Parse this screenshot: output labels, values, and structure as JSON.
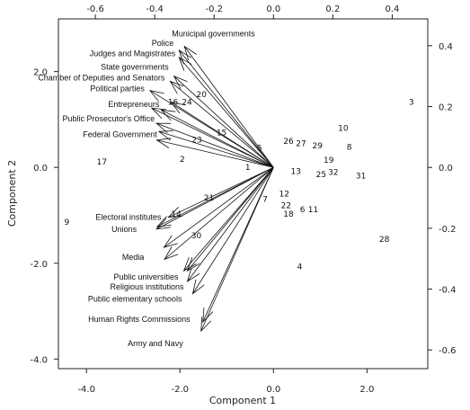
{
  "chart_data": {
    "type": "biplot",
    "xlabel": "Component 1",
    "ylabel": "Component 2",
    "xlim": [
      -4.6,
      3.3
    ],
    "ylim": [
      -4.2,
      3.1
    ],
    "x_ticks": [
      -4.0,
      -2.0,
      0.0,
      2.0
    ],
    "x_tick_labels": [
      "-4.0",
      "-2.0",
      "0.0",
      "2.0"
    ],
    "y_ticks": [
      -4.0,
      -2.0,
      0.0,
      2.0
    ],
    "y_tick_labels": [
      "-4.0",
      "-2.0",
      "0.0",
      "2.0"
    ],
    "top_ticks": [
      -0.6,
      -0.4,
      -0.2,
      0.0,
      0.2,
      0.4
    ],
    "top_tick_labels": [
      "-0.6",
      "-0.4",
      "-0.2",
      "0.0",
      "0.2",
      "0.4"
    ],
    "right_ticks": [
      0.4,
      0.2,
      0.0,
      -0.2,
      -0.4,
      -0.6
    ],
    "right_tick_labels": [
      "0.4",
      "0.2",
      "0.0",
      "-0.2",
      "-0.4",
      "-0.6"
    ],
    "loading_scale": 6.35,
    "variables": [
      {
        "name": "Municipal governments",
        "x": -0.3,
        "y": 0.398
      },
      {
        "name": "Police",
        "x": -0.318,
        "y": 0.385
      },
      {
        "name": "Judges and Magistrates",
        "x": -0.318,
        "y": 0.362
      },
      {
        "name": "State governments",
        "x": -0.335,
        "y": 0.3
      },
      {
        "name": "Chamber of Deputies and Senators",
        "x": -0.348,
        "y": 0.283
      },
      {
        "name": "Political parties",
        "x": -0.416,
        "y": 0.253
      },
      {
        "name": "Entrepreneurs",
        "x": -0.378,
        "y": 0.189
      },
      {
        "name": "Public Prosecutor's Office",
        "x": -0.394,
        "y": 0.145
      },
      {
        "name": "Federal Government",
        "x": -0.386,
        "y": 0.118
      },
      {
        "name": "Electoral institutes",
        "x": -0.354,
        "y": -0.164
      },
      {
        "name": "Unions",
        "x": -0.394,
        "y": -0.203
      },
      {
        "name": "Media",
        "x": -0.369,
        "y": -0.263
      },
      {
        "name": "Public universities",
        "x": -0.302,
        "y": -0.34
      },
      {
        "name": "Religious institutions",
        "x": -0.29,
        "y": -0.375
      },
      {
        "name": "Public elementary schools",
        "x": -0.272,
        "y": -0.415
      },
      {
        "name": "Human Rights Commissions",
        "x": -0.238,
        "y": -0.508
      },
      {
        "name": "Army and Navy",
        "x": -0.244,
        "y": -0.538
      }
    ],
    "extra_arrows": [
      {
        "x": -0.41,
        "y": 0.195
      },
      {
        "x": -0.345,
        "y": 0.215
      },
      {
        "x": -0.393,
        "y": 0.09
      },
      {
        "x": -0.392,
        "y": -0.195
      },
      {
        "x": -0.367,
        "y": -0.302
      },
      {
        "x": -0.29,
        "y": -0.34
      }
    ],
    "points": [
      {
        "label": "1",
        "x": -0.55,
        "y": 0.0
      },
      {
        "label": "2",
        "x": -1.95,
        "y": 0.17
      },
      {
        "label": "3",
        "x": 2.95,
        "y": 1.36
      },
      {
        "label": "4",
        "x": 0.56,
        "y": -2.07
      },
      {
        "label": "5",
        "x": -0.3,
        "y": 0.41
      },
      {
        "label": "6",
        "x": 0.62,
        "y": -0.88
      },
      {
        "label": "7",
        "x": -0.18,
        "y": -0.66
      },
      {
        "label": "8",
        "x": 1.62,
        "y": 0.43
      },
      {
        "label": "9",
        "x": -4.42,
        "y": -1.14
      },
      {
        "label": "10",
        "x": 1.49,
        "y": 0.82
      },
      {
        "label": "11",
        "x": 0.85,
        "y": -0.88
      },
      {
        "label": "12",
        "x": 0.23,
        "y": -0.55
      },
      {
        "label": "13",
        "x": 0.48,
        "y": -0.08
      },
      {
        "label": "14",
        "x": -2.08,
        "y": -0.97
      },
      {
        "label": "15",
        "x": -1.11,
        "y": 0.73
      },
      {
        "label": "16",
        "x": -2.15,
        "y": 1.36
      },
      {
        "label": "17",
        "x": -3.67,
        "y": 0.12
      },
      {
        "label": "18",
        "x": 0.32,
        "y": -0.97
      },
      {
        "label": "19",
        "x": 1.18,
        "y": 0.15
      },
      {
        "label": "20",
        "x": -1.54,
        "y": 1.52
      },
      {
        "label": "21",
        "x": -1.38,
        "y": -0.63
      },
      {
        "label": "22",
        "x": 0.27,
        "y": -0.79
      },
      {
        "label": "23",
        "x": -1.64,
        "y": 0.58
      },
      {
        "label": "24",
        "x": -1.85,
        "y": 1.36
      },
      {
        "label": "25",
        "x": 1.02,
        "y": -0.15
      },
      {
        "label": "26",
        "x": 0.32,
        "y": 0.55
      },
      {
        "label": "27",
        "x": 0.59,
        "y": 0.5
      },
      {
        "label": "28",
        "x": 2.37,
        "y": -1.5
      },
      {
        "label": "29",
        "x": 0.94,
        "y": 0.45
      },
      {
        "label": "30",
        "x": -1.65,
        "y": -1.42
      },
      {
        "label": "31",
        "x": 1.87,
        "y": -0.17
      },
      {
        "label": "32",
        "x": 1.28,
        "y": -0.1
      }
    ]
  }
}
